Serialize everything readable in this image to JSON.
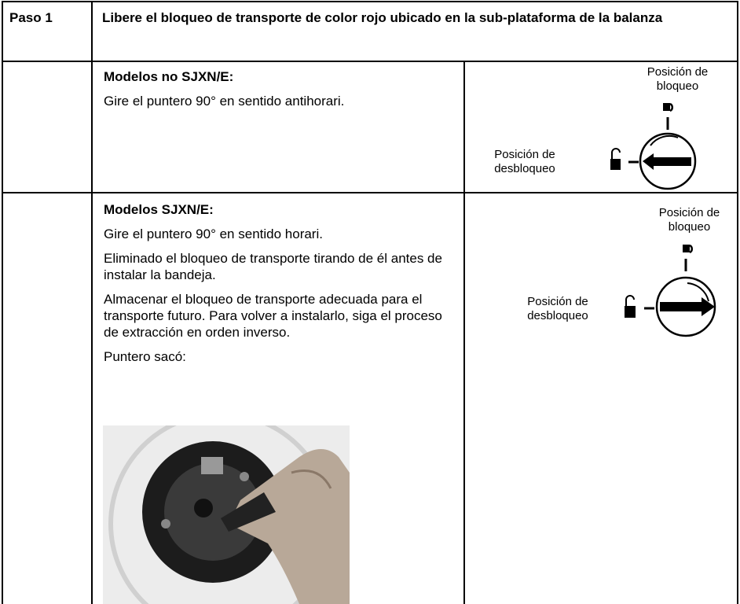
{
  "header": {
    "step": "Paso 1",
    "title": "Libere el bloqueo de transporte de color rojo ubicado en la sub-plataforma de la balanza"
  },
  "sections": [
    {
      "heading": "Modelos no SJXN/E:",
      "paragraphs": [
        "Gire el puntero 90° en sentido antihorari."
      ],
      "diagram": {
        "lock_label": "Posición de bloqueo",
        "unlock_label": "Posición de desbloqueo"
      }
    },
    {
      "heading": "Modelos SJXN/E:",
      "paragraphs": [
        "Gire el puntero 90° en sentido horari.",
        "Eliminado el bloqueo de transporte tirando de él antes de instalar la bandeja.",
        "Almacenar el bloqueo de transporte adecuada para el transporte futuro. Para volver a instalarlo, siga el proceso de extracción en orden inverso.",
        "Puntero  sacó:"
      ],
      "diagram": {
        "lock_label": "Posición de bloqueo",
        "unlock_label": "Posición de desbloqueo"
      }
    }
  ]
}
